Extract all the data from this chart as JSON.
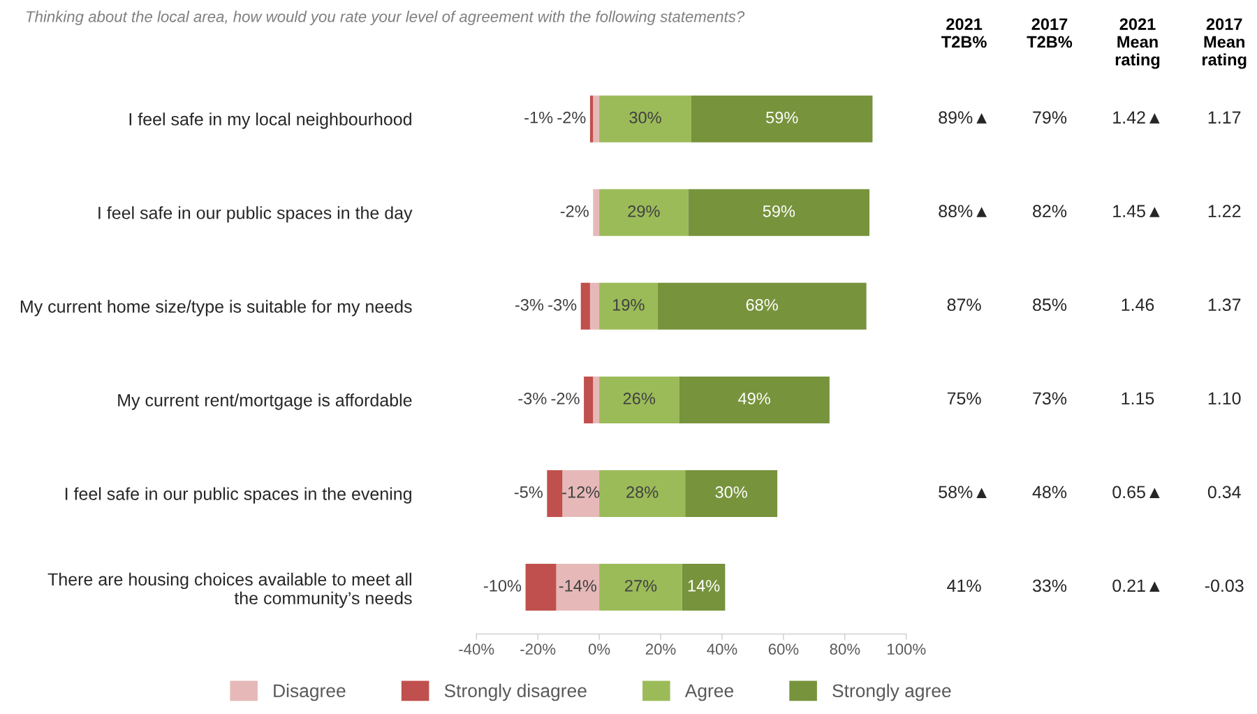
{
  "chart_data": {
    "type": "bar",
    "orientation": "horizontal",
    "stacked": true,
    "title": "Thinking about the local area, how would you rate your level of agreement with the following statements?",
    "categories": [
      "I feel safe in my local neighbourhood",
      "I feel safe in our public spaces in the day",
      "My current home size/type is suitable for my needs",
      "My current rent/mortgage is affordable",
      "I feel safe in our public spaces in the evening",
      "There are housing choices available to meet all\nthe community’s needs"
    ],
    "series": [
      {
        "name": "Disagree",
        "color": "#e6b9b8",
        "values": [
          -2,
          -2,
          -3,
          -2,
          -12,
          -14
        ],
        "value_labels": [
          "-2%",
          "-2%",
          "-3%",
          "-2%",
          "-12%",
          "-14%"
        ]
      },
      {
        "name": "Strongly disagree",
        "color": "#c0504d",
        "values": [
          -1,
          null,
          -3,
          -3,
          -5,
          -10
        ],
        "value_labels": [
          "-1%",
          null,
          "-3%",
          "-3%",
          "-5%",
          "-10%"
        ]
      },
      {
        "name": "Agree",
        "color": "#9bbb59",
        "values": [
          30,
          29,
          19,
          26,
          28,
          27
        ],
        "value_labels": [
          "30%",
          "29%",
          "19%",
          "26%",
          "28%",
          "27%"
        ]
      },
      {
        "name": "Strongly agree",
        "color": "#77933c",
        "values": [
          59,
          59,
          68,
          49,
          30,
          14
        ],
        "value_labels": [
          "59%",
          "59%",
          "68%",
          "49%",
          "30%",
          "14%"
        ]
      }
    ],
    "xlim": [
      -40,
      100
    ],
    "xticks": [
      {
        "value": -40,
        "label": "-40%"
      },
      {
        "value": -20,
        "label": "-20%"
      },
      {
        "value": 0,
        "label": "0%"
      },
      {
        "value": 20,
        "label": "20%"
      },
      {
        "value": 40,
        "label": "40%"
      },
      {
        "value": 60,
        "label": "60%"
      },
      {
        "value": 80,
        "label": "80%"
      },
      {
        "value": 100,
        "label": "100%"
      }
    ],
    "grid": false,
    "legend": "bottom",
    "annotations": [
      "2021\nT2B%",
      "2017\nT2B%",
      "2021\nMean\nrating",
      "2017\nMean\nrating",
      "89%▲",
      "79%",
      "1.42▲",
      "1.17",
      "88%▲",
      "82%",
      "1.45▲",
      "1.22",
      "87%",
      "85%",
      "1.46",
      "1.37",
      "75%",
      "73%",
      "1.15",
      "1.10",
      "58%▲",
      "48%",
      "0.65▲",
      "0.34",
      "41%",
      "33%",
      "0.21▲",
      "-0.03"
    ]
  }
}
